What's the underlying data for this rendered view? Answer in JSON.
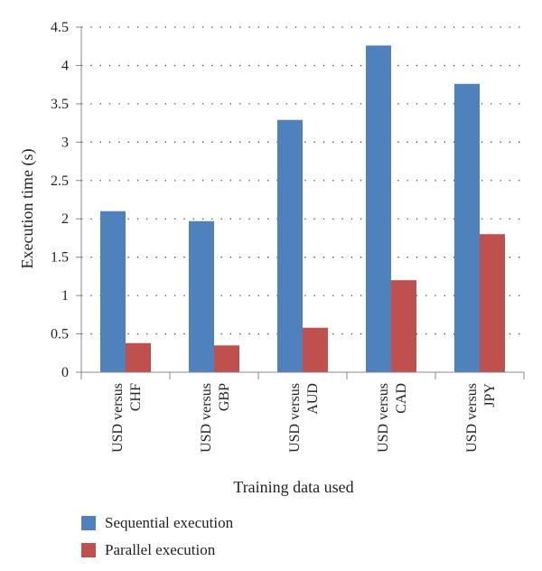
{
  "chart_data": {
    "type": "bar",
    "xlabel": "Training data used",
    "ylabel": "Execution time (s)",
    "ylim": [
      0,
      4.5
    ],
    "yticks": [
      "0",
      "0.5",
      "1",
      "1.5",
      "2",
      "2.5",
      "3",
      "3.5",
      "4",
      "4.5"
    ],
    "grid": "horizontal dotted",
    "legend_position": "bottom",
    "categories": [
      [
        "USD versus",
        "CHF"
      ],
      [
        "USD versus",
        "GBP"
      ],
      [
        "USD versus",
        "AUD"
      ],
      [
        "USD versus",
        "CAD"
      ],
      [
        "USD versus",
        "JPY"
      ]
    ],
    "series": [
      {
        "name": "Sequential execution",
        "color": "#4f81bd",
        "values": [
          2.1,
          1.97,
          3.29,
          4.26,
          3.76
        ]
      },
      {
        "name": "Parallel execution",
        "color": "#c0504d",
        "values": [
          0.38,
          0.35,
          0.58,
          1.2,
          1.8
        ]
      }
    ]
  }
}
